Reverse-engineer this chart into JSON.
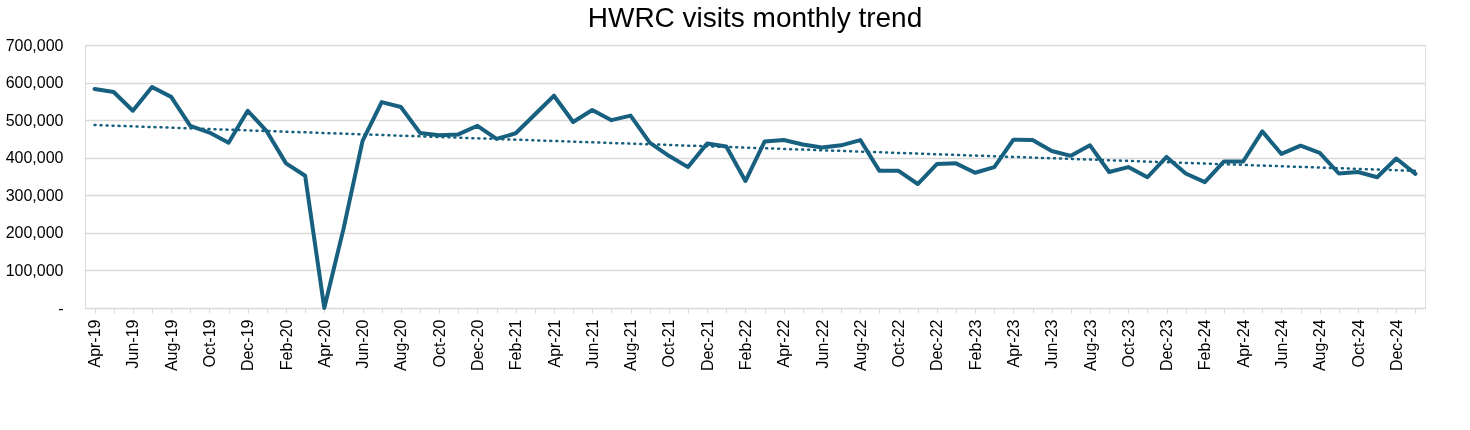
{
  "chart_data": {
    "type": "line",
    "title": "HWRC visits monthly trend",
    "categories": [
      "Apr-19",
      null,
      "Jun-19",
      null,
      "Aug-19",
      null,
      "Oct-19",
      null,
      "Dec-19",
      null,
      "Feb-20",
      null,
      "Apr-20",
      null,
      "Jun-20",
      null,
      "Aug-20",
      null,
      "Oct-20",
      null,
      "Dec-20",
      null,
      "Feb-21",
      null,
      "Apr-21",
      null,
      "Jun-21",
      null,
      "Aug-21",
      null,
      "Oct-21",
      null,
      "Dec-21",
      null,
      "Feb-22",
      null,
      "Apr-22",
      null,
      "Jun-22",
      null,
      "Aug-22",
      null,
      "Oct-22",
      null,
      "Dec-22",
      null,
      "Feb-23",
      null,
      "Apr-23",
      null,
      "Jun-23",
      null,
      "Aug-23",
      null,
      "Oct-23",
      null,
      "Dec-23",
      null,
      "Feb-24",
      null,
      "Apr-24",
      null,
      "Jun-24",
      null,
      "Aug-24",
      null,
      "Oct-24",
      null,
      "Dec-24",
      null
    ],
    "series": [
      {
        "type": "line",
        "color": "#17607f",
        "line_style": "solid",
        "values": [
          583000,
          575000,
          525000,
          588000,
          562000,
          485000,
          467000,
          440000,
          525000,
          470000,
          385000,
          352000,
          0,
          210000,
          445000,
          548000,
          535000,
          466000,
          460000,
          462000,
          485000,
          450000,
          465000,
          515000,
          565000,
          495000,
          527000,
          500000,
          512000,
          440000,
          405000,
          375000,
          438000,
          430000,
          338000,
          443000,
          447000,
          435000,
          427000,
          433000,
          447000,
          365000,
          365000,
          330000,
          383000,
          385000,
          360000,
          375000,
          448000,
          447000,
          418000,
          405000,
          433000,
          362000,
          375000,
          348000,
          402000,
          358000,
          335000,
          390000,
          390000,
          470000,
          410000,
          432000,
          413000,
          358000,
          362000,
          348000,
          398000,
          357000
        ]
      },
      {
        "type": "line",
        "color": "#17607f",
        "line_style": "dotted",
        "values": [
          487000,
          null,
          null,
          null,
          null,
          null,
          null,
          null,
          null,
          null,
          null,
          null,
          null,
          null,
          null,
          null,
          null,
          null,
          null,
          null,
          null,
          null,
          null,
          null,
          null,
          null,
          null,
          null,
          null,
          null,
          null,
          null,
          null,
          null,
          null,
          null,
          null,
          null,
          null,
          null,
          null,
          null,
          null,
          null,
          null,
          null,
          null,
          null,
          null,
          null,
          null,
          null,
          null,
          null,
          null,
          null,
          null,
          null,
          null,
          null,
          null,
          null,
          null,
          null,
          null,
          null,
          null,
          null,
          null,
          365000
        ]
      }
    ],
    "ylim": [
      0,
      700000
    ],
    "yticks": [
      {
        "value": 0,
        "label": "-"
      },
      {
        "value": 100000,
        "label": "100,000"
      },
      {
        "value": 200000,
        "label": "200,000"
      },
      {
        "value": 300000,
        "label": "300,000"
      },
      {
        "value": 400000,
        "label": "400,000"
      },
      {
        "value": 500000,
        "label": "500,000"
      },
      {
        "value": 600000,
        "label": "600,000"
      },
      {
        "value": 700000,
        "label": "700,000"
      }
    ],
    "grid": "y",
    "marker": "none"
  }
}
